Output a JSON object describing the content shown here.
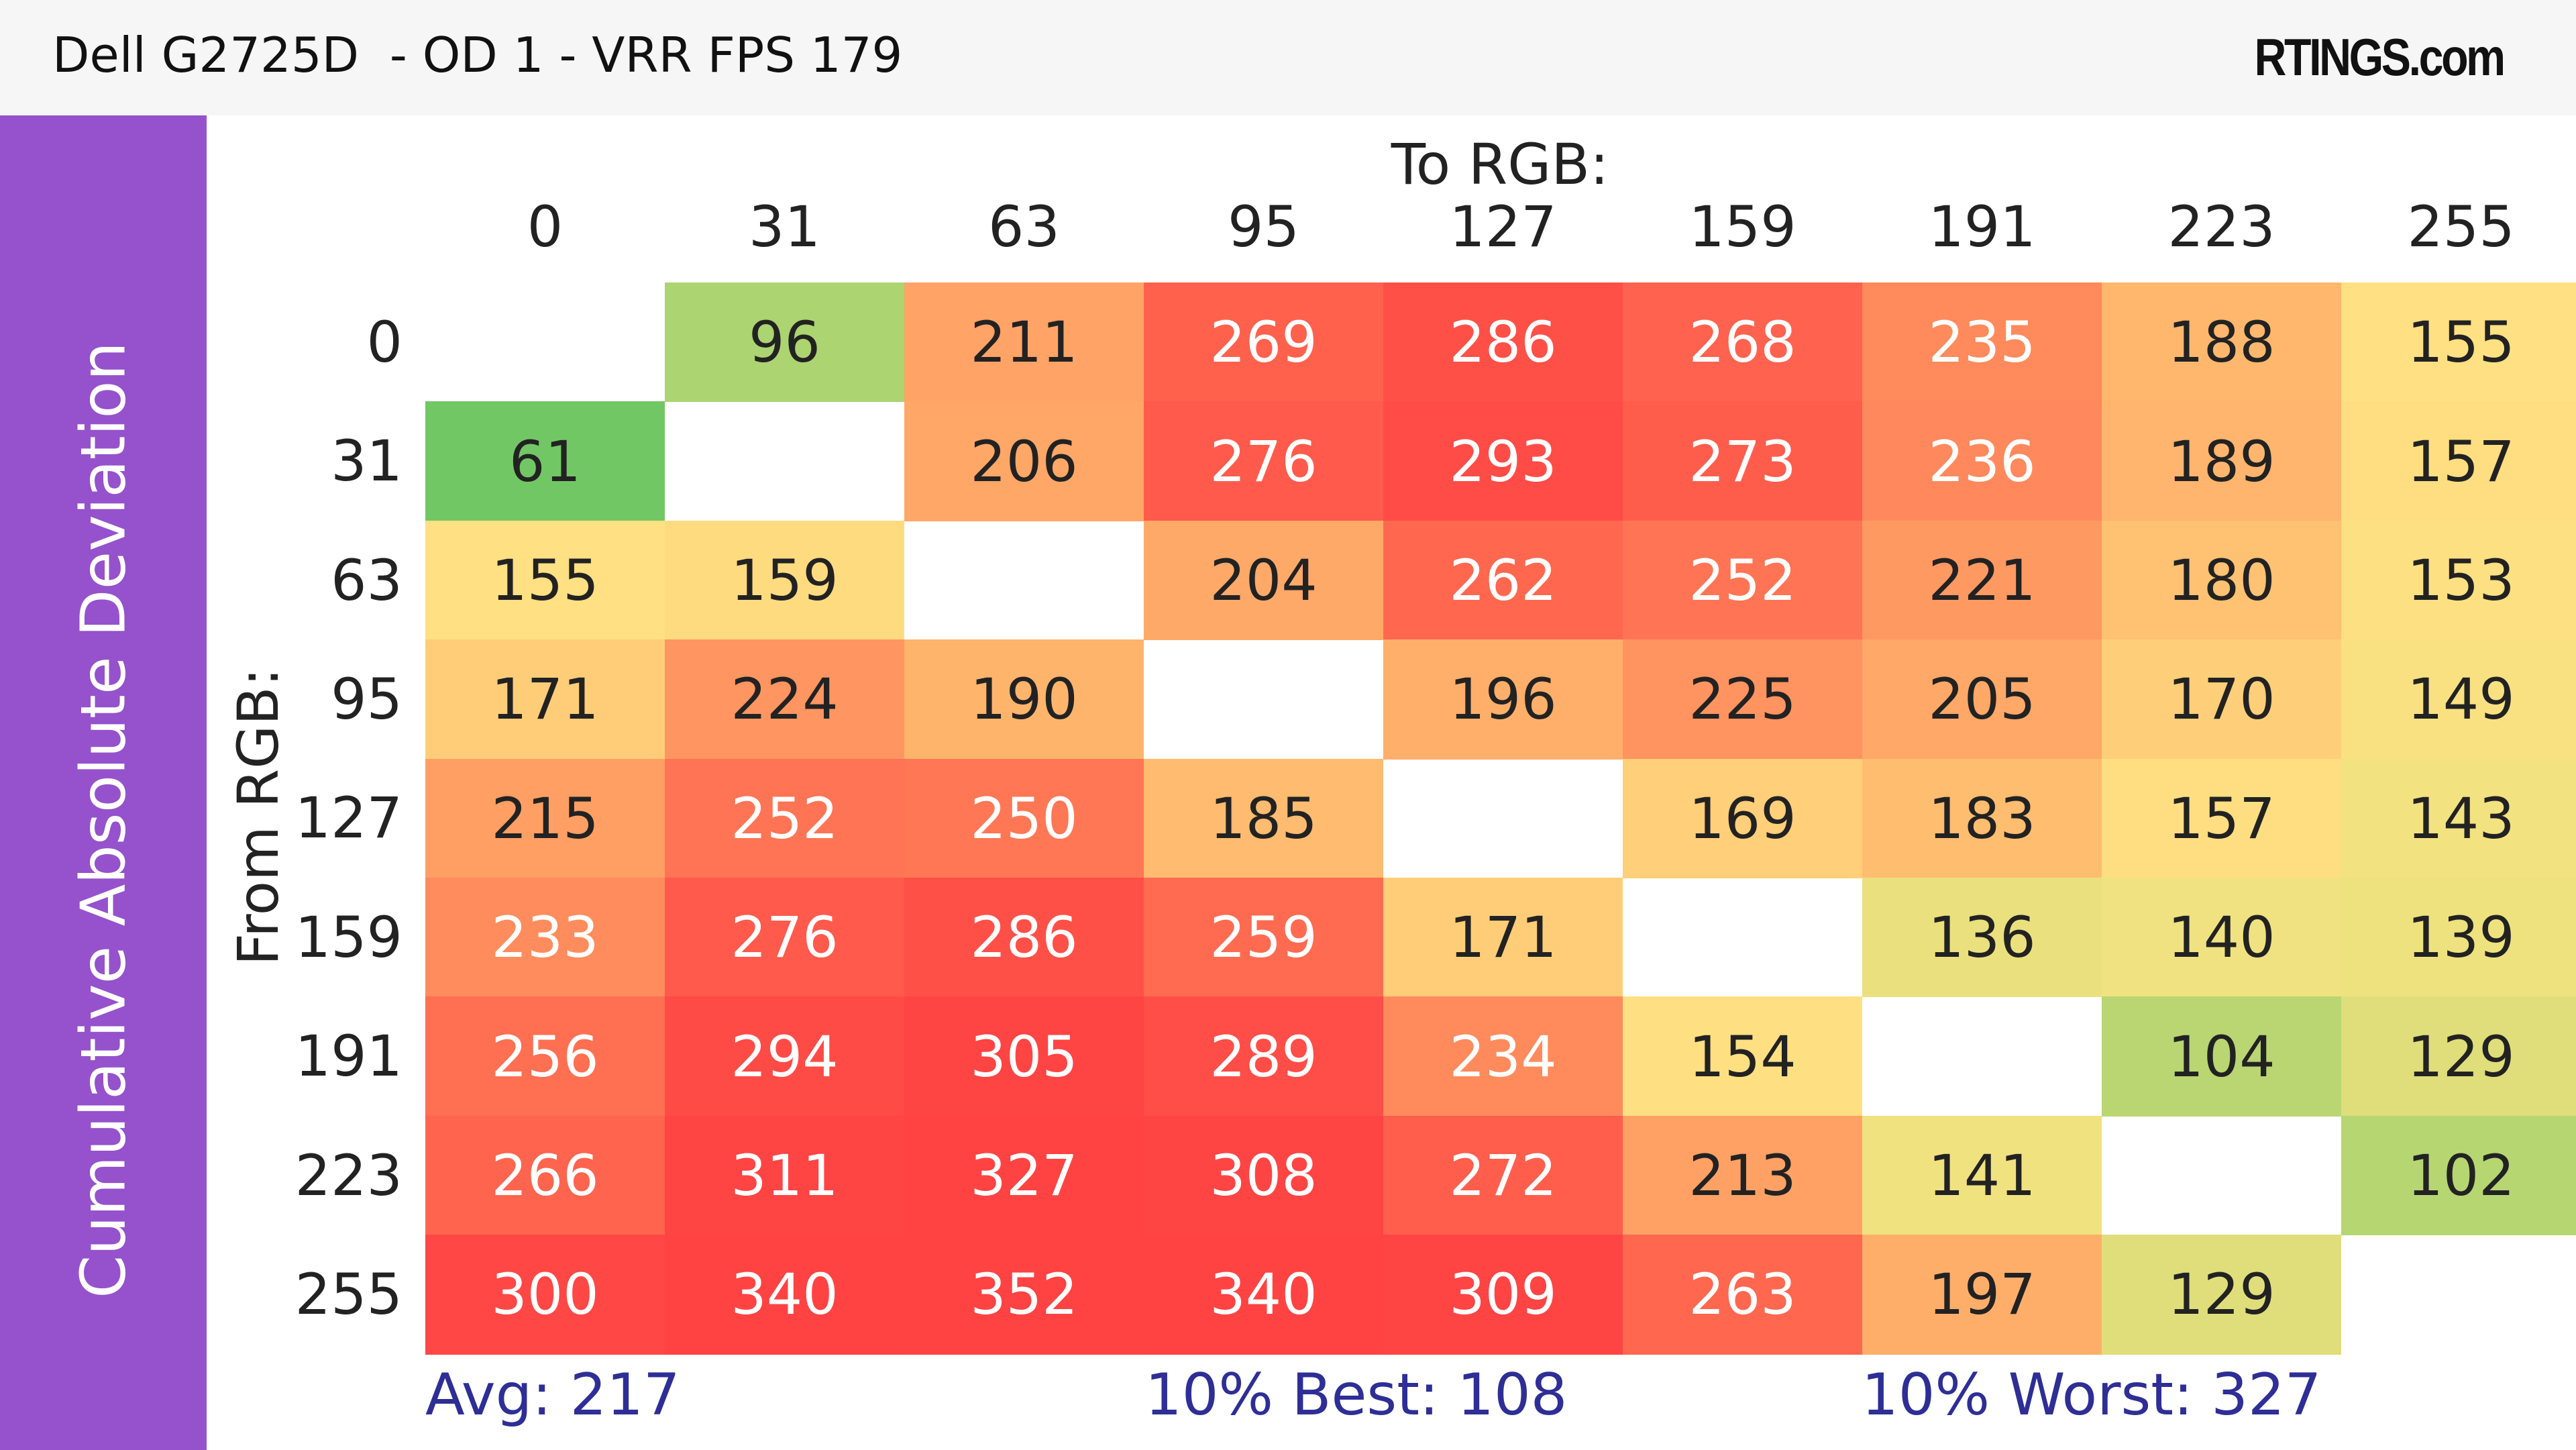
{
  "header": {
    "title": "Dell G2725D  - OD 1 - VRR FPS 179",
    "logo": "RTINGS.com"
  },
  "sidebar": {
    "label": "Cumulative Absolute Deviation"
  },
  "chart_data": {
    "type": "heatmap",
    "xlabel": "To RGB:",
    "ylabel": "From RGB:",
    "x_categories": [
      "0",
      "31",
      "63",
      "95",
      "127",
      "159",
      "191",
      "223",
      "255"
    ],
    "y_categories": [
      "0",
      "31",
      "63",
      "95",
      "127",
      "159",
      "191",
      "223",
      "255"
    ],
    "values": [
      [
        null,
        96,
        211,
        269,
        286,
        268,
        235,
        188,
        155
      ],
      [
        61,
        null,
        206,
        276,
        293,
        273,
        236,
        189,
        157
      ],
      [
        155,
        159,
        null,
        204,
        262,
        252,
        221,
        180,
        153
      ],
      [
        171,
        224,
        190,
        null,
        196,
        225,
        205,
        170,
        149
      ],
      [
        215,
        252,
        250,
        185,
        null,
        169,
        183,
        157,
        143
      ],
      [
        233,
        276,
        286,
        259,
        171,
        null,
        136,
        140,
        139
      ],
      [
        256,
        294,
        305,
        289,
        234,
        154,
        null,
        104,
        129
      ],
      [
        266,
        311,
        327,
        308,
        272,
        213,
        141,
        null,
        102
      ],
      [
        300,
        340,
        352,
        340,
        309,
        263,
        197,
        129,
        null
      ]
    ],
    "colorscale": {
      "low": "#72c765",
      "mid": "#ffe082",
      "high": "#ff4444"
    }
  },
  "footer": {
    "avg": "Avg: 217",
    "best": "10% Best: 108",
    "worst": "10% Worst: 327"
  },
  "colors": {
    "sidebar": "#9552cc",
    "footer_text": "#2e2e96",
    "header_bg": "#f6f6f6"
  }
}
